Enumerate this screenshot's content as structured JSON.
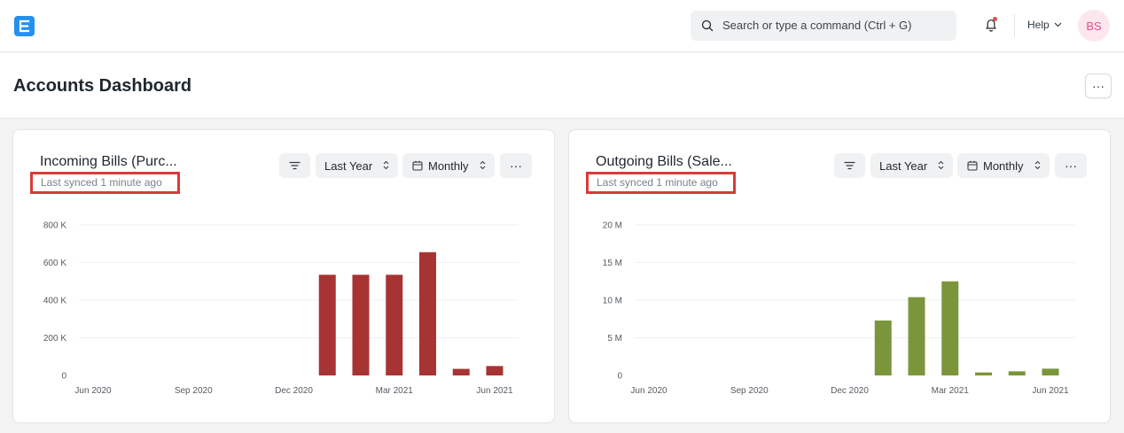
{
  "navbar": {
    "logo_icon": "erpnext-logo",
    "search_placeholder": "Search or type a command (Ctrl + G)",
    "help_label": "Help",
    "avatar_initials": "BS"
  },
  "page": {
    "title": "Accounts Dashboard",
    "menu_label": "···"
  },
  "cards": [
    {
      "title": "Incoming Bills (Purc...",
      "sync": "Last synced 1 minute ago",
      "range_label": "Last Year",
      "period_label": "Monthly",
      "more_label": "···"
    },
    {
      "title": "Outgoing Bills (Sale...",
      "sync": "Last synced 1 minute ago",
      "range_label": "Last Year",
      "period_label": "Monthly",
      "more_label": "···"
    }
  ],
  "chart_data": [
    {
      "type": "bar",
      "color": "#a83333",
      "ylim": [
        0,
        800000
      ],
      "yticks": [
        0,
        200000,
        400000,
        600000,
        800000
      ],
      "ytick_labels": [
        "0",
        "200 K",
        "400 K",
        "600 K",
        "800 K"
      ],
      "x": [
        "Jun 2020",
        "Jul 2020",
        "Aug 2020",
        "Sep 2020",
        "Oct 2020",
        "Nov 2020",
        "Dec 2020",
        "Jan 2021",
        "Feb 2021",
        "Mar 2021",
        "Apr 2021",
        "May 2021",
        "Jun 2021"
      ],
      "xtick_labels": [
        "Jun 2020",
        "",
        "",
        "Sep 2020",
        "",
        "",
        "Dec 2020",
        "",
        "",
        "Mar 2021",
        "",
        "",
        "Jun 2021"
      ],
      "values": [
        0,
        0,
        0,
        0,
        0,
        0,
        0,
        535000,
        535000,
        535000,
        655000,
        35000,
        50000
      ],
      "grid": true
    },
    {
      "type": "bar",
      "color": "#7b963a",
      "ylim": [
        0,
        20000000
      ],
      "yticks": [
        0,
        5000000,
        10000000,
        15000000,
        20000000
      ],
      "ytick_labels": [
        "0",
        "5 M",
        "10 M",
        "15 M",
        "20 M"
      ],
      "x": [
        "Jun 2020",
        "Jul 2020",
        "Aug 2020",
        "Sep 2020",
        "Oct 2020",
        "Nov 2020",
        "Dec 2020",
        "Jan 2021",
        "Feb 2021",
        "Mar 2021",
        "Apr 2021",
        "May 2021",
        "Jun 2021"
      ],
      "xtick_labels": [
        "Jun 2020",
        "",
        "",
        "Sep 2020",
        "",
        "",
        "Dec 2020",
        "",
        "",
        "Mar 2021",
        "",
        "",
        "Jun 2021"
      ],
      "values": [
        0,
        0,
        0,
        0,
        0,
        0,
        0,
        7300000,
        10400000,
        12500000,
        400000,
        550000,
        900000
      ],
      "grid": true
    }
  ]
}
